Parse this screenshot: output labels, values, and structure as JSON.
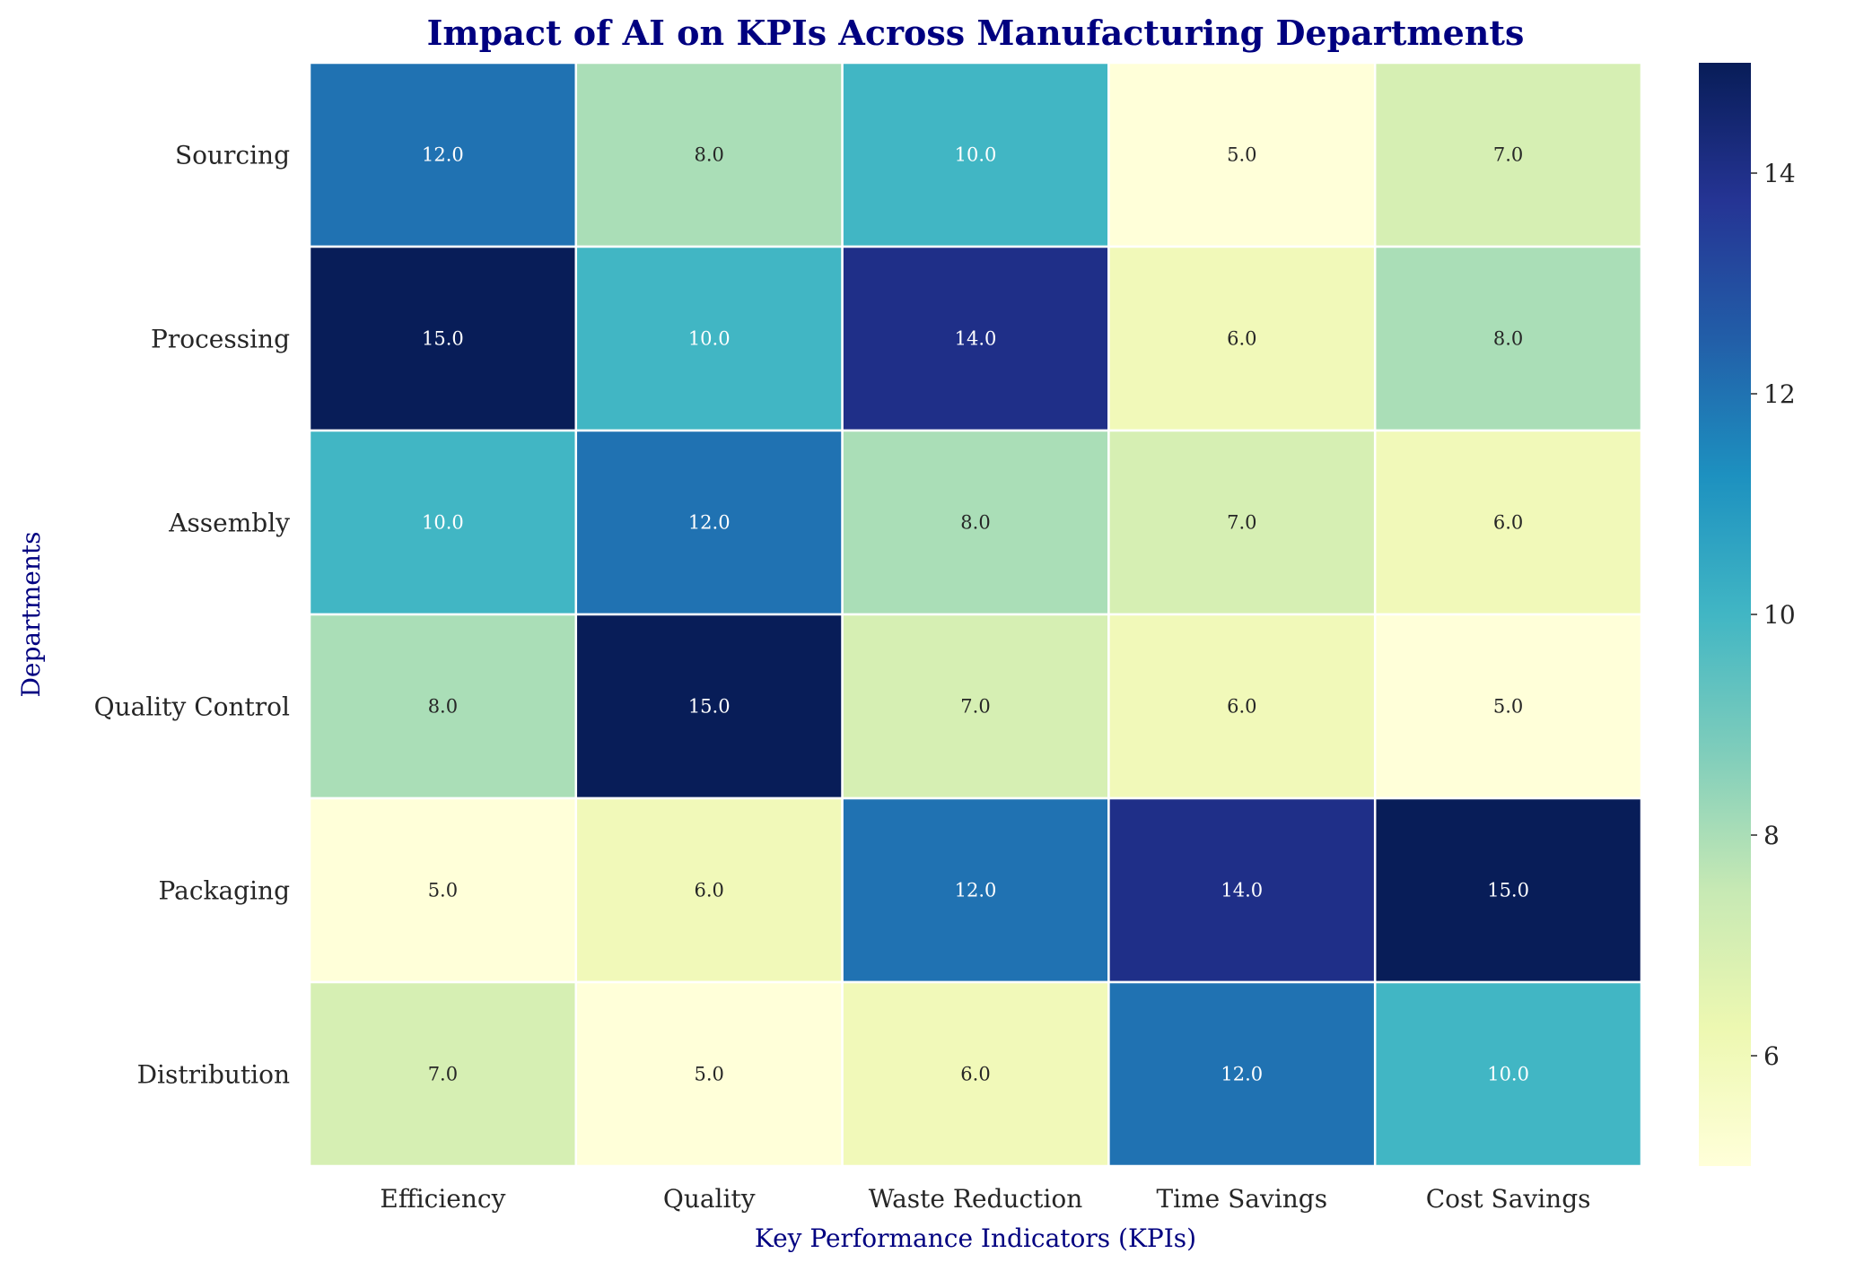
{
  "chart_data": {
    "type": "heatmap",
    "title": "Impact of AI on KPIs Across Manufacturing Departments",
    "xlabel": "Key Performance Indicators (KPIs)",
    "ylabel": "Departments",
    "x_categories": [
      "Efficiency",
      "Quality",
      "Waste Reduction",
      "Time Savings",
      "Cost Savings"
    ],
    "y_categories": [
      "Sourcing",
      "Processing",
      "Assembly",
      "Quality Control",
      "Packaging",
      "Distribution"
    ],
    "values": [
      [
        12,
        8,
        10,
        5,
        7
      ],
      [
        15,
        10,
        14,
        6,
        8
      ],
      [
        10,
        12,
        8,
        7,
        6
      ],
      [
        8,
        15,
        7,
        6,
        5
      ],
      [
        5,
        6,
        12,
        14,
        15
      ],
      [
        7,
        5,
        6,
        12,
        10
      ]
    ],
    "annotation_format": "0.0",
    "colormap": "YlGnBu",
    "colorbar": {
      "range": [
        5,
        15
      ],
      "ticks": [
        6,
        8,
        10,
        12,
        14
      ]
    },
    "title_color": "#000080",
    "label_color": "#000080"
  }
}
